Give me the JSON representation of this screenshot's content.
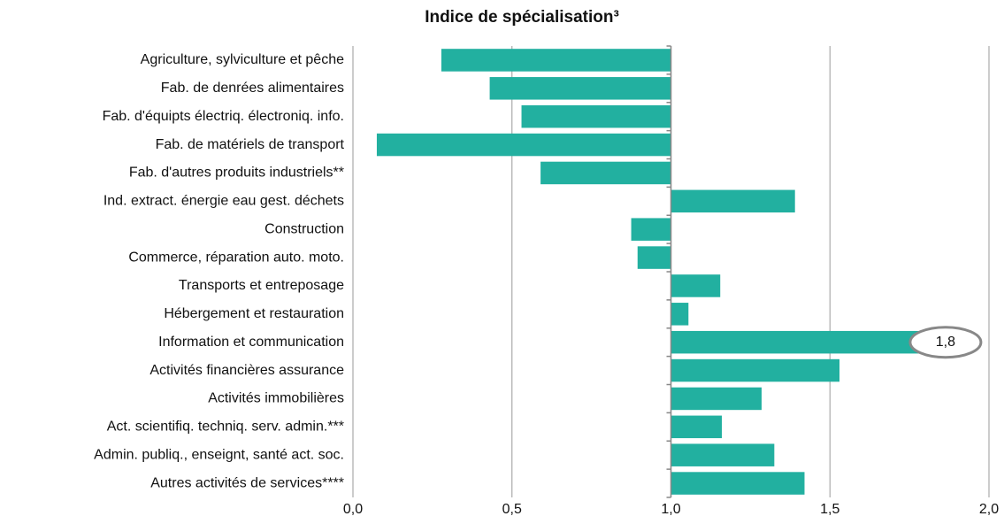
{
  "chart_data": {
    "type": "bar",
    "orientation": "horizontal",
    "title": "Indice de spécialisation³",
    "categories": [
      "Agriculture, sylviculture et pêche",
      "Fab. de denrées alimentaires",
      "Fab. d'équipts électriq. électroniq. info.",
      "Fab. de matériels de transport",
      "Fab. d'autres produits industriels**",
      "Ind. extract. énergie eau gest. déchets",
      "Construction",
      "Commerce, réparation auto. moto.",
      "Transports et entreposage",
      "Hébergement et restauration",
      "Information et communication",
      "Activités financières assurance",
      "Activités immobilières",
      "Act. scientifiq. techniq. serv. admin.***",
      "Admin. publiq., enseignt, santé act. soc.",
      "Autres activités de services****"
    ],
    "values": [
      0.278,
      0.43,
      0.53,
      0.075,
      0.59,
      1.39,
      0.875,
      0.895,
      1.155,
      1.055,
      1.78,
      1.53,
      1.285,
      1.16,
      1.325,
      1.42
    ],
    "value_labels": [
      null,
      null,
      null,
      null,
      null,
      null,
      null,
      null,
      null,
      null,
      "1,8",
      null,
      null,
      null,
      null,
      null
    ],
    "base": 1,
    "color": "#22b0a0",
    "xlim": [
      0,
      2
    ],
    "xticks": [
      {
        "value": 0,
        "label": "0,0"
      },
      {
        "value": 0.5,
        "label": "0,5"
      },
      {
        "value": 1,
        "label": "1,0"
      },
      {
        "value": 1.5,
        "label": "1,5"
      },
      {
        "value": 2,
        "label": "2,0"
      }
    ],
    "grid": true
  }
}
